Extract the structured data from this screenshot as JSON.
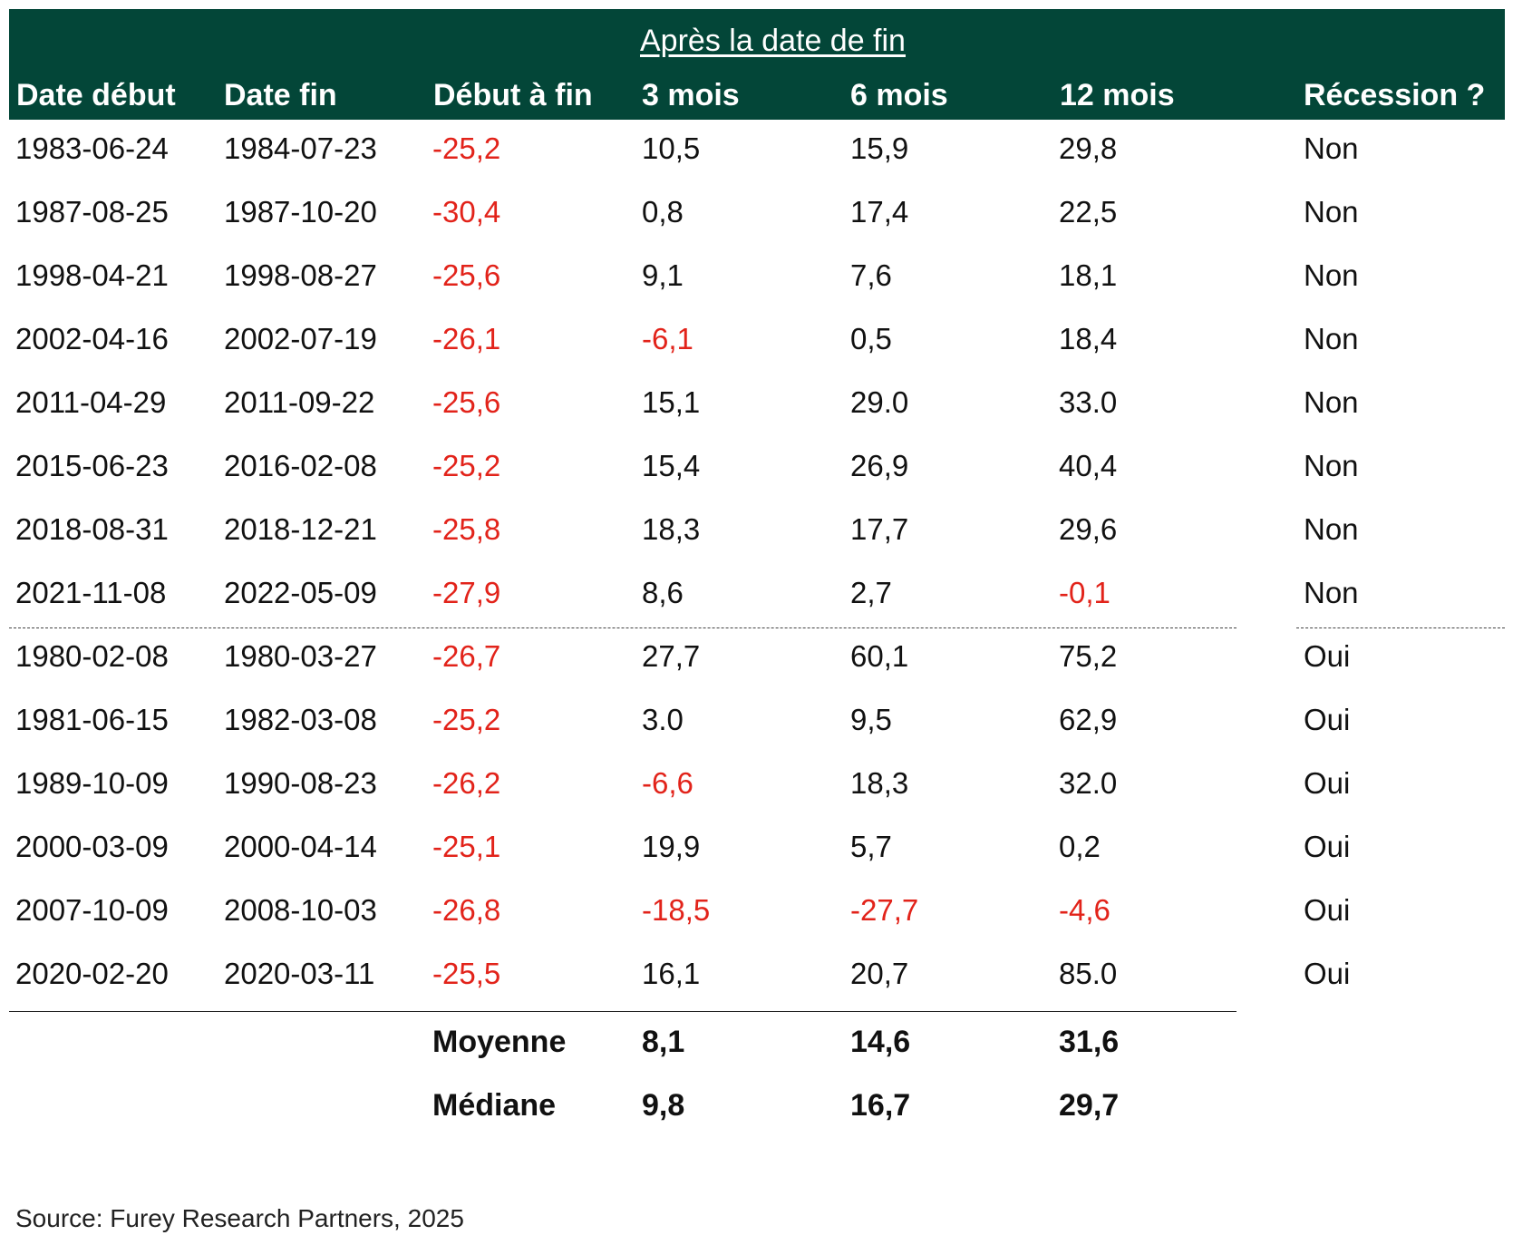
{
  "table": {
    "group_header": "Après la date de fin",
    "columns": [
      "Date début",
      "Date fin",
      "Début à fin",
      "3 mois",
      "6 mois",
      "12 mois",
      "Récession ?"
    ],
    "rows": [
      [
        "1983-06-24",
        "1984-07-23",
        "-25,2",
        "10,5",
        "15,9",
        "29,8",
        "Non"
      ],
      [
        "1987-08-25",
        "1987-10-20",
        "-30,4",
        "0,8",
        "17,4",
        "22,5",
        "Non"
      ],
      [
        "1998-04-21",
        "1998-08-27",
        "-25,6",
        "9,1",
        "7,6",
        "18,1",
        "Non"
      ],
      [
        "2002-04-16",
        "2002-07-19",
        "-26,1",
        "-6,1",
        "0,5",
        "18,4",
        "Non"
      ],
      [
        "2011-04-29",
        "2011-09-22",
        "-25,6",
        "15,1",
        "29.0",
        "33.0",
        "Non"
      ],
      [
        "2015-06-23",
        "2016-02-08",
        "-25,2",
        "15,4",
        "26,9",
        "40,4",
        "Non"
      ],
      [
        "2018-08-31",
        "2018-12-21",
        "-25,8",
        "18,3",
        "17,7",
        "29,6",
        "Non"
      ],
      [
        "2021-11-08",
        "2022-05-09",
        "-27,9",
        "8,6",
        "2,7",
        "-0,1",
        "Non"
      ],
      [
        "1980-02-08",
        "1980-03-27",
        "-26,7",
        "27,7",
        "60,1",
        "75,2",
        "Oui"
      ],
      [
        "1981-06-15",
        "1982-03-08",
        "-25,2",
        "3.0",
        "9,5",
        "62,9",
        "Oui"
      ],
      [
        "1989-10-09",
        "1990-08-23",
        "-26,2",
        "-6,6",
        "18,3",
        "32.0",
        "Oui"
      ],
      [
        "2000-03-09",
        "2000-04-14",
        "-25,1",
        "19,9",
        "5,7",
        "0,2",
        "Oui"
      ],
      [
        "2007-10-09",
        "2008-10-03",
        "-26,8",
        "-18,5",
        "-27,7",
        "-4,6",
        "Oui"
      ],
      [
        "2020-02-20",
        "2020-03-11",
        "-25,5",
        "16,1",
        "20,7",
        "85.0",
        "Oui"
      ]
    ],
    "summary": [
      {
        "label": "Moyenne",
        "values": [
          "8,1",
          "14,6",
          "31,6"
        ]
      },
      {
        "label": "Médiane",
        "values": [
          "9,8",
          "16,7",
          "29,7"
        ]
      }
    ]
  },
  "chart_data": {
    "type": "table",
    "columns": [
      "Date début",
      "Date fin",
      "Début à fin",
      "3 mois",
      "6 mois",
      "12 mois",
      "Récession ?"
    ],
    "rows": [
      [
        "1983-06-24",
        "1984-07-23",
        "-25,2",
        "10,5",
        "15,9",
        "29,8",
        "Non"
      ],
      [
        "1987-08-25",
        "1987-10-20",
        "-30,4",
        "0,8",
        "17,4",
        "22,5",
        "Non"
      ],
      [
        "1998-04-21",
        "1998-08-27",
        "-25,6",
        "9,1",
        "7,6",
        "18,1",
        "Non"
      ],
      [
        "2002-04-16",
        "2002-07-19",
        "-26,1",
        "-6,1",
        "0,5",
        "18,4",
        "Non"
      ],
      [
        "2011-04-29",
        "2011-09-22",
        "-25,6",
        "15,1",
        "29.0",
        "33.0",
        "Non"
      ],
      [
        "2015-06-23",
        "2016-02-08",
        "-25,2",
        "15,4",
        "26,9",
        "40,4",
        "Non"
      ],
      [
        "2018-08-31",
        "2018-12-21",
        "-25,8",
        "18,3",
        "17,7",
        "29,6",
        "Non"
      ],
      [
        "2021-11-08",
        "2022-05-09",
        "-27,9",
        "8,6",
        "2,7",
        "-0,1",
        "Non"
      ],
      [
        "1980-02-08",
        "1980-03-27",
        "-26,7",
        "27,7",
        "60,1",
        "75,2",
        "Oui"
      ],
      [
        "1981-06-15",
        "1982-03-08",
        "-25,2",
        "3.0",
        "9,5",
        "62,9",
        "Oui"
      ],
      [
        "1989-10-09",
        "1990-08-23",
        "-26,2",
        "-6,6",
        "18,3",
        "32.0",
        "Oui"
      ],
      [
        "2000-03-09",
        "2000-04-14",
        "-25,1",
        "19,9",
        "5,7",
        "0,2",
        "Oui"
      ],
      [
        "2007-10-09",
        "2008-10-03",
        "-26,8",
        "-18,5",
        "-27,7",
        "-4,6",
        "Oui"
      ],
      [
        "2020-02-20",
        "2020-03-11",
        "-25,5",
        "16,1",
        "20,7",
        "85.0",
        "Oui"
      ]
    ]
  },
  "source": "Source: Furey Research Partners, 2025",
  "colors": {
    "header_bg": "#034638",
    "header_text": "#ffffff",
    "negative": "#e2231a",
    "text": "#111111"
  }
}
